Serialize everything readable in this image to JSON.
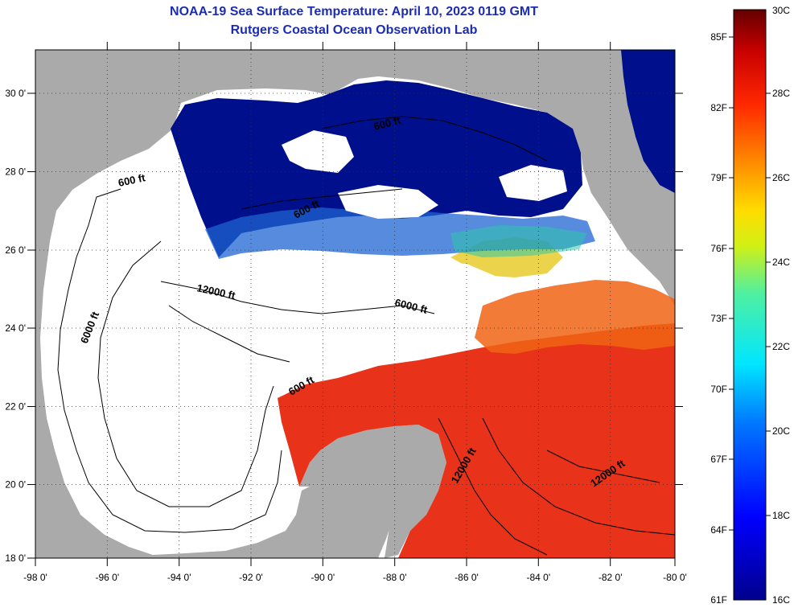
{
  "header": {
    "title": "NOAA-19 Sea Surface Temperature:  April 10, 2023 0119 GMT",
    "subtitle": "Rutgers Coastal Ocean Observation Lab"
  },
  "map": {
    "lon_range": [
      -98,
      -80
    ],
    "lat_range": [
      18,
      31
    ],
    "lon_ticks": [
      {
        "value": -98,
        "label": "-98 0'"
      },
      {
        "value": -96,
        "label": "-96 0'"
      },
      {
        "value": -94,
        "label": "-94 0'"
      },
      {
        "value": -92,
        "label": "-92 0'"
      },
      {
        "value": -90,
        "label": "-90 0'"
      },
      {
        "value": -88,
        "label": "-88 0'"
      },
      {
        "value": -86,
        "label": "-86 0'"
      },
      {
        "value": -84,
        "label": "-84 0'"
      },
      {
        "value": -82,
        "label": "-82 0'"
      },
      {
        "value": -80,
        "label": "-80 0'"
      }
    ],
    "lat_ticks": [
      {
        "value": 30,
        "label": "30 0'"
      },
      {
        "value": 28,
        "label": "28 0'"
      },
      {
        "value": 26,
        "label": "26 0'"
      },
      {
        "value": 24,
        "label": "24 0'"
      },
      {
        "value": 22,
        "label": "22 0'"
      },
      {
        "value": 20,
        "label": "20 0'"
      },
      {
        "value": 18,
        "label": "18 0'"
      }
    ],
    "grid": true,
    "colors": {
      "land": "#aaaaaa",
      "no_data": "#ffffff",
      "cold": "#000f8c",
      "warm": "#e8321a"
    },
    "contour_labels": [
      {
        "text": "600 ft"
      },
      {
        "text": "600 ft"
      },
      {
        "text": "600 ft"
      },
      {
        "text": "600 ft"
      },
      {
        "text": "6000 ft"
      },
      {
        "text": "6000 ft"
      },
      {
        "text": "12000 ft"
      },
      {
        "text": "12000 ft"
      },
      {
        "text": "12000 ft"
      }
    ]
  },
  "colorbar": {
    "celsius": [
      {
        "value": 30,
        "label": "30C"
      },
      {
        "value": 28,
        "label": "28C"
      },
      {
        "value": 26,
        "label": "26C"
      },
      {
        "value": 24,
        "label": "24C"
      },
      {
        "value": 22,
        "label": "22C"
      },
      {
        "value": 20,
        "label": "20C"
      },
      {
        "value": 18,
        "label": "18C"
      },
      {
        "value": 16,
        "label": "16C"
      }
    ],
    "fahrenheit": [
      {
        "value": 85,
        "label": "85F"
      },
      {
        "value": 82,
        "label": "82F"
      },
      {
        "value": 79,
        "label": "79F"
      },
      {
        "value": 76,
        "label": "76F"
      },
      {
        "value": 73,
        "label": "73F"
      },
      {
        "value": 70,
        "label": "70F"
      },
      {
        "value": 67,
        "label": "67F"
      },
      {
        "value": 64,
        "label": "64F"
      },
      {
        "value": 61,
        "label": "61F"
      }
    ],
    "range_c": [
      16,
      30
    ]
  }
}
